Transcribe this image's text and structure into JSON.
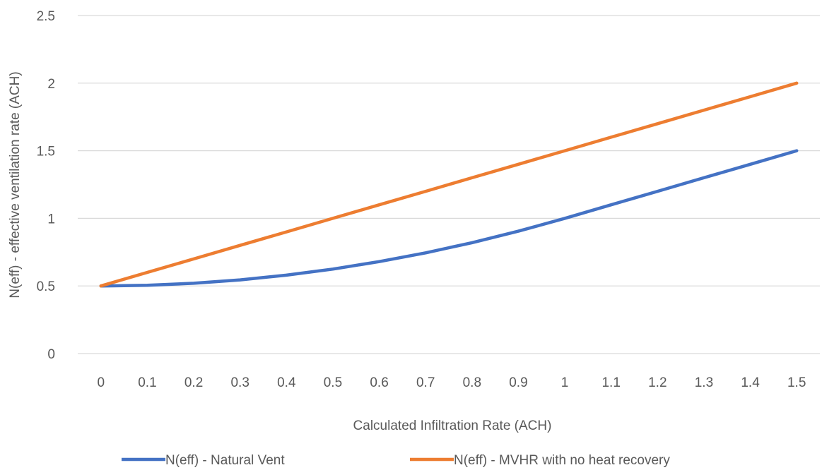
{
  "chart_data": {
    "type": "line",
    "title": "",
    "xlabel": "Calculated Infiltration Rate (ACH)",
    "ylabel": "N(eff) - effective ventilation rate (ACH)",
    "x": [
      0,
      0.1,
      0.2,
      0.3,
      0.4,
      0.5,
      0.6,
      0.7,
      0.8,
      0.9,
      1,
      1.1,
      1.2,
      1.3,
      1.4,
      1.5
    ],
    "x_tick_labels": [
      "0",
      "0.1",
      "0.2",
      "0.3",
      "0.4",
      "0.5",
      "0.6",
      "0.7",
      "0.8",
      "0.9",
      "1",
      "1.1",
      "1.2",
      "1.3",
      "1.4",
      "1.5"
    ],
    "y_ticks": [
      0,
      0.5,
      1,
      1.5,
      2,
      2.5
    ],
    "y_tick_labels": [
      "0",
      "0.5",
      "1",
      "1.5",
      "2",
      "2.5"
    ],
    "ylim": [
      0,
      2.5
    ],
    "grid": true,
    "legend_position": "bottom",
    "series": [
      {
        "name": "N(eff) - Natural Vent",
        "color": "#4472C4",
        "values": [
          0.5,
          0.505,
          0.52,
          0.545,
          0.58,
          0.625,
          0.68,
          0.745,
          0.82,
          0.905,
          1.0,
          1.1,
          1.2,
          1.3,
          1.4,
          1.5
        ]
      },
      {
        "name": "N(eff) - MVHR with no heat recovery",
        "color": "#ED7D31",
        "values": [
          0.5,
          0.6,
          0.7,
          0.8,
          0.9,
          1.0,
          1.1,
          1.2,
          1.3,
          1.4,
          1.5,
          1.6,
          1.7,
          1.8,
          1.9,
          2.0
        ]
      }
    ]
  }
}
